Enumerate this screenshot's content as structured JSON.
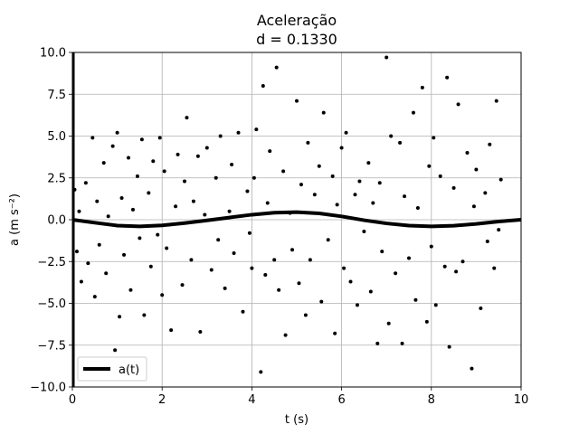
{
  "chart_data": {
    "type": "scatter",
    "title": "Aceleração",
    "subtitle": "d = 0.1330",
    "xlabel": "t (s)",
    "ylabel": "a (m s⁻²)",
    "xlim": [
      0,
      10
    ],
    "ylim": [
      -10,
      10
    ],
    "xticks": [
      "0",
      "2",
      "4",
      "6",
      "8",
      "10"
    ],
    "yticks": [
      "−10.0",
      "−7.5",
      "−5.0",
      "−2.5",
      "0.0",
      "2.5",
      "5.0",
      "7.5",
      "10.0"
    ],
    "grid": true,
    "legend_position": "lower-left",
    "colors": {
      "points": "#000000",
      "curve": "#000000"
    },
    "series": [
      {
        "name": "a(t)",
        "kind": "line",
        "x": [
          0.0,
          0.5,
          1.0,
          1.5,
          2.0,
          2.5,
          3.0,
          3.5,
          4.0,
          4.5,
          5.0,
          5.5,
          6.0,
          6.5,
          7.0,
          7.5,
          8.0,
          8.5,
          9.0,
          9.5,
          10.0
        ],
        "y": [
          0.0,
          -0.18,
          -0.35,
          -0.4,
          -0.34,
          -0.2,
          -0.04,
          0.13,
          0.3,
          0.42,
          0.45,
          0.38,
          0.2,
          -0.03,
          -0.22,
          -0.35,
          -0.4,
          -0.36,
          -0.25,
          -0.11,
          0.0
        ]
      },
      {
        "kind": "scatter",
        "x": [
          0.05,
          0.1,
          0.15,
          0.2,
          0.3,
          0.35,
          0.45,
          0.5,
          0.55,
          0.6,
          0.7,
          0.75,
          0.8,
          0.9,
          0.95,
          1.0,
          1.05,
          1.1,
          1.15,
          1.25,
          1.3,
          1.35,
          1.45,
          1.5,
          1.55,
          1.6,
          1.7,
          1.75,
          1.8,
          1.9,
          1.95,
          2.0,
          2.05,
          2.1,
          2.2,
          2.3,
          2.35,
          2.45,
          2.5,
          2.55,
          2.65,
          2.7,
          2.8,
          2.85,
          2.95,
          3.0,
          3.1,
          3.2,
          3.25,
          3.3,
          3.4,
          3.5,
          3.55,
          3.6,
          3.7,
          3.8,
          3.9,
          3.95,
          4.0,
          4.05,
          4.1,
          4.2,
          4.25,
          4.3,
          4.35,
          4.4,
          4.5,
          4.55,
          4.6,
          4.7,
          4.75,
          4.85,
          4.9,
          5.0,
          5.05,
          5.1,
          5.2,
          5.25,
          5.3,
          5.4,
          5.5,
          5.55,
          5.6,
          5.7,
          5.8,
          5.85,
          5.9,
          6.0,
          6.05,
          6.1,
          6.2,
          6.3,
          6.35,
          6.4,
          6.5,
          6.6,
          6.65,
          6.7,
          6.8,
          6.85,
          6.9,
          7.0,
          7.05,
          7.1,
          7.2,
          7.3,
          7.35,
          7.4,
          7.5,
          7.6,
          7.65,
          7.7,
          7.8,
          7.9,
          7.95,
          8.0,
          8.05,
          8.1,
          8.2,
          8.3,
          8.35,
          8.4,
          8.5,
          8.55,
          8.6,
          8.7,
          8.8,
          8.9,
          8.95,
          9.0,
          9.1,
          9.2,
          9.25,
          9.3,
          9.4,
          9.45,
          9.5,
          9.55
        ],
        "y": [
          1.8,
          -1.9,
          0.5,
          -3.7,
          2.2,
          -2.6,
          4.9,
          -4.6,
          1.1,
          -1.5,
          3.4,
          -3.2,
          0.2,
          4.4,
          -7.8,
          5.2,
          -5.8,
          1.3,
          -2.1,
          3.7,
          -4.2,
          0.6,
          2.6,
          -1.1,
          4.8,
          -5.7,
          1.6,
          -2.8,
          3.5,
          -0.9,
          4.9,
          -4.5,
          2.9,
          -1.7,
          -6.6,
          0.8,
          3.9,
          -3.9,
          2.3,
          6.1,
          -2.4,
          1.1,
          3.8,
          -6.7,
          0.3,
          4.3,
          -3.0,
          2.5,
          -1.2,
          5.0,
          -4.1,
          0.5,
          3.3,
          -2.0,
          5.2,
          -5.5,
          1.7,
          -0.8,
          -2.9,
          2.5,
          5.4,
          -9.1,
          8.0,
          -3.3,
          1.0,
          4.1,
          -2.4,
          9.1,
          -4.2,
          2.9,
          -6.9,
          0.4,
          -1.8,
          7.1,
          -3.8,
          2.1,
          -5.7,
          4.6,
          -2.4,
          1.5,
          3.2,
          -4.9,
          6.4,
          -1.2,
          2.6,
          -6.8,
          0.9,
          4.3,
          -2.9,
          5.2,
          -3.7,
          1.5,
          -5.1,
          2.3,
          -0.7,
          3.4,
          -4.3,
          1.0,
          -7.4,
          2.2,
          -1.9,
          9.7,
          -6.2,
          5.0,
          -3.2,
          4.6,
          -7.4,
          1.4,
          -2.3,
          6.4,
          -4.8,
          0.7,
          7.9,
          -6.1,
          3.2,
          -1.6,
          4.9,
          -5.1,
          2.6,
          -2.8,
          8.5,
          -7.6,
          1.9,
          -3.1,
          6.9,
          -2.5,
          4.0,
          -8.9,
          0.8,
          3.0,
          -5.3,
          1.6,
          -1.3,
          4.5,
          -2.9,
          7.1,
          -0.6,
          2.4
        ]
      }
    ]
  }
}
